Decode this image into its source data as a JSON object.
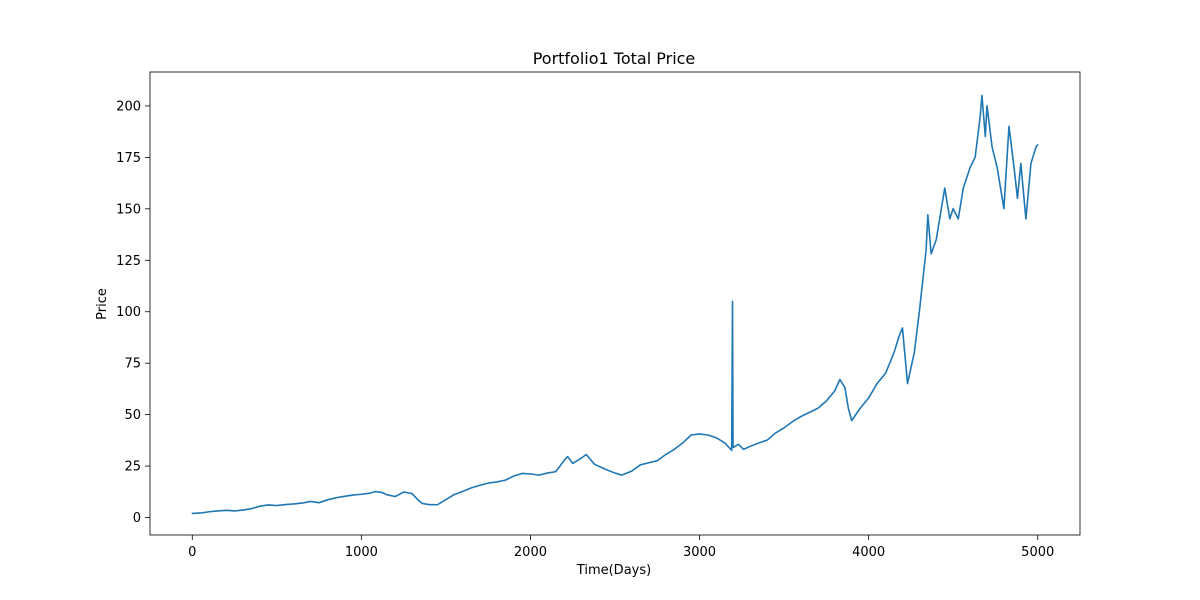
{
  "chart_data": {
    "type": "line",
    "title": "Portfolio1 Total Price",
    "xlabel": "Time(Days)",
    "ylabel": "Price",
    "xlim": [
      -250,
      5250
    ],
    "ylim": [
      -8.5,
      216.5
    ],
    "x_ticks": [
      0,
      1000,
      2000,
      3000,
      4000,
      5000
    ],
    "y_ticks": [
      0,
      25,
      50,
      75,
      100,
      125,
      150,
      175,
      200
    ],
    "grid": false,
    "colors": {
      "series": "#1f77b4"
    },
    "series": [
      {
        "values": [
          [
            0,
            2
          ],
          [
            50,
            2.2
          ],
          [
            100,
            2.8
          ],
          [
            150,
            3.2
          ],
          [
            200,
            3.5
          ],
          [
            250,
            3.2
          ],
          [
            300,
            3.6
          ],
          [
            350,
            4.3
          ],
          [
            400,
            5.5
          ],
          [
            450,
            6.1
          ],
          [
            500,
            5.8
          ],
          [
            550,
            6.3
          ],
          [
            600,
            6.6
          ],
          [
            650,
            7
          ],
          [
            700,
            7.8
          ],
          [
            750,
            7.2
          ],
          [
            800,
            8.6
          ],
          [
            850,
            9.6
          ],
          [
            900,
            10.3
          ],
          [
            950,
            10.9
          ],
          [
            1000,
            11.3
          ],
          [
            1050,
            11.8
          ],
          [
            1080,
            12.6
          ],
          [
            1120,
            12.2
          ],
          [
            1150,
            11.1
          ],
          [
            1200,
            10.2
          ],
          [
            1250,
            12.4
          ],
          [
            1300,
            11.6
          ],
          [
            1340,
            8.2
          ],
          [
            1360,
            6.8
          ],
          [
            1400,
            6.3
          ],
          [
            1450,
            6.2
          ],
          [
            1500,
            8.7
          ],
          [
            1550,
            11.2
          ],
          [
            1600,
            12.7
          ],
          [
            1650,
            14.4
          ],
          [
            1700,
            15.6
          ],
          [
            1750,
            16.7
          ],
          [
            1800,
            17.3
          ],
          [
            1850,
            18.1
          ],
          [
            1900,
            20.1
          ],
          [
            1950,
            21.4
          ],
          [
            2000,
            21.2
          ],
          [
            2050,
            20.6
          ],
          [
            2100,
            21.6
          ],
          [
            2150,
            22.3
          ],
          [
            2200,
            27.8
          ],
          [
            2220,
            29.6
          ],
          [
            2250,
            26.3
          ],
          [
            2300,
            28.8
          ],
          [
            2330,
            30.6
          ],
          [
            2380,
            25.8
          ],
          [
            2450,
            23.2
          ],
          [
            2500,
            21.6
          ],
          [
            2540,
            20.6
          ],
          [
            2600,
            22.6
          ],
          [
            2650,
            25.6
          ],
          [
            2700,
            26.6
          ],
          [
            2750,
            27.6
          ],
          [
            2800,
            30.6
          ],
          [
            2850,
            33.1
          ],
          [
            2900,
            36.2
          ],
          [
            2950,
            40.1
          ],
          [
            3000,
            40.6
          ],
          [
            3050,
            40.1
          ],
          [
            3100,
            38.7
          ],
          [
            3150,
            36.2
          ],
          [
            3190,
            32.6
          ],
          [
            3195,
            105
          ],
          [
            3198,
            34
          ],
          [
            3230,
            35.6
          ],
          [
            3260,
            33.1
          ],
          [
            3300,
            34.6
          ],
          [
            3350,
            36.2
          ],
          [
            3400,
            37.6
          ],
          [
            3450,
            41.1
          ],
          [
            3500,
            43.6
          ],
          [
            3550,
            46.6
          ],
          [
            3600,
            49.1
          ],
          [
            3650,
            51.1
          ],
          [
            3700,
            53.1
          ],
          [
            3750,
            56.6
          ],
          [
            3800,
            61.6
          ],
          [
            3830,
            67.1
          ],
          [
            3860,
            63.1
          ],
          [
            3880,
            53.1
          ],
          [
            3900,
            47.1
          ],
          [
            3950,
            53.1
          ],
          [
            4000,
            58.1
          ],
          [
            4050,
            65.1
          ],
          [
            4100,
            70.1
          ],
          [
            4150,
            80.1
          ],
          [
            4180,
            88.1
          ],
          [
            4200,
            92.1
          ],
          [
            4230,
            65.1
          ],
          [
            4270,
            80.1
          ],
          [
            4300,
            100.1
          ],
          [
            4320,
            115.1
          ],
          [
            4340,
            130.1
          ],
          [
            4350,
            147.1
          ],
          [
            4370,
            128.1
          ],
          [
            4400,
            135.1
          ],
          [
            4430,
            150.1
          ],
          [
            4450,
            160.1
          ],
          [
            4480,
            145.1
          ],
          [
            4500,
            150.1
          ],
          [
            4530,
            145.1
          ],
          [
            4560,
            160.1
          ],
          [
            4600,
            170.1
          ],
          [
            4630,
            175.1
          ],
          [
            4660,
            195.1
          ],
          [
            4670,
            205.1
          ],
          [
            4690,
            185.1
          ],
          [
            4700,
            200.1
          ],
          [
            4730,
            180.1
          ],
          [
            4760,
            170.1
          ],
          [
            4800,
            150.1
          ],
          [
            4830,
            190.1
          ],
          [
            4860,
            170.1
          ],
          [
            4880,
            155.1
          ],
          [
            4900,
            172.1
          ],
          [
            4930,
            145.1
          ],
          [
            4960,
            172.1
          ],
          [
            4990,
            180.1
          ],
          [
            5000,
            181.1
          ]
        ]
      }
    ]
  }
}
